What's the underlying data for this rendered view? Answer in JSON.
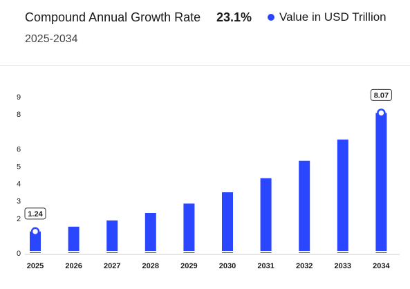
{
  "header": {
    "cagr_label": "Compound Annual Growth Rate",
    "cagr_value": "23.1%",
    "legend_label": "Value in USD Trillion",
    "period": "2025-2034"
  },
  "colors": {
    "bar": "#2a46ff",
    "axis": "#1a1a1a",
    "label_border": "#333333"
  },
  "chart_data": {
    "type": "bar",
    "categories": [
      "2025",
      "2026",
      "2027",
      "2028",
      "2029",
      "2030",
      "2031",
      "2032",
      "2033",
      "2034"
    ],
    "series": [
      {
        "name": "Value in USD Trillion",
        "values": [
          1.24,
          1.52,
          1.88,
          2.31,
          2.85,
          3.5,
          4.31,
          5.31,
          6.54,
          8.07
        ]
      }
    ],
    "ylim": [
      0,
      9
    ],
    "yticks": [
      "0",
      "2",
      "3",
      "4",
      "5",
      "6",
      "8",
      "9"
    ],
    "data_labels": [
      {
        "category": "2025",
        "text": "1.24"
      },
      {
        "category": "2034",
        "text": "8.07"
      }
    ],
    "grid": false,
    "legend": "top-right"
  }
}
